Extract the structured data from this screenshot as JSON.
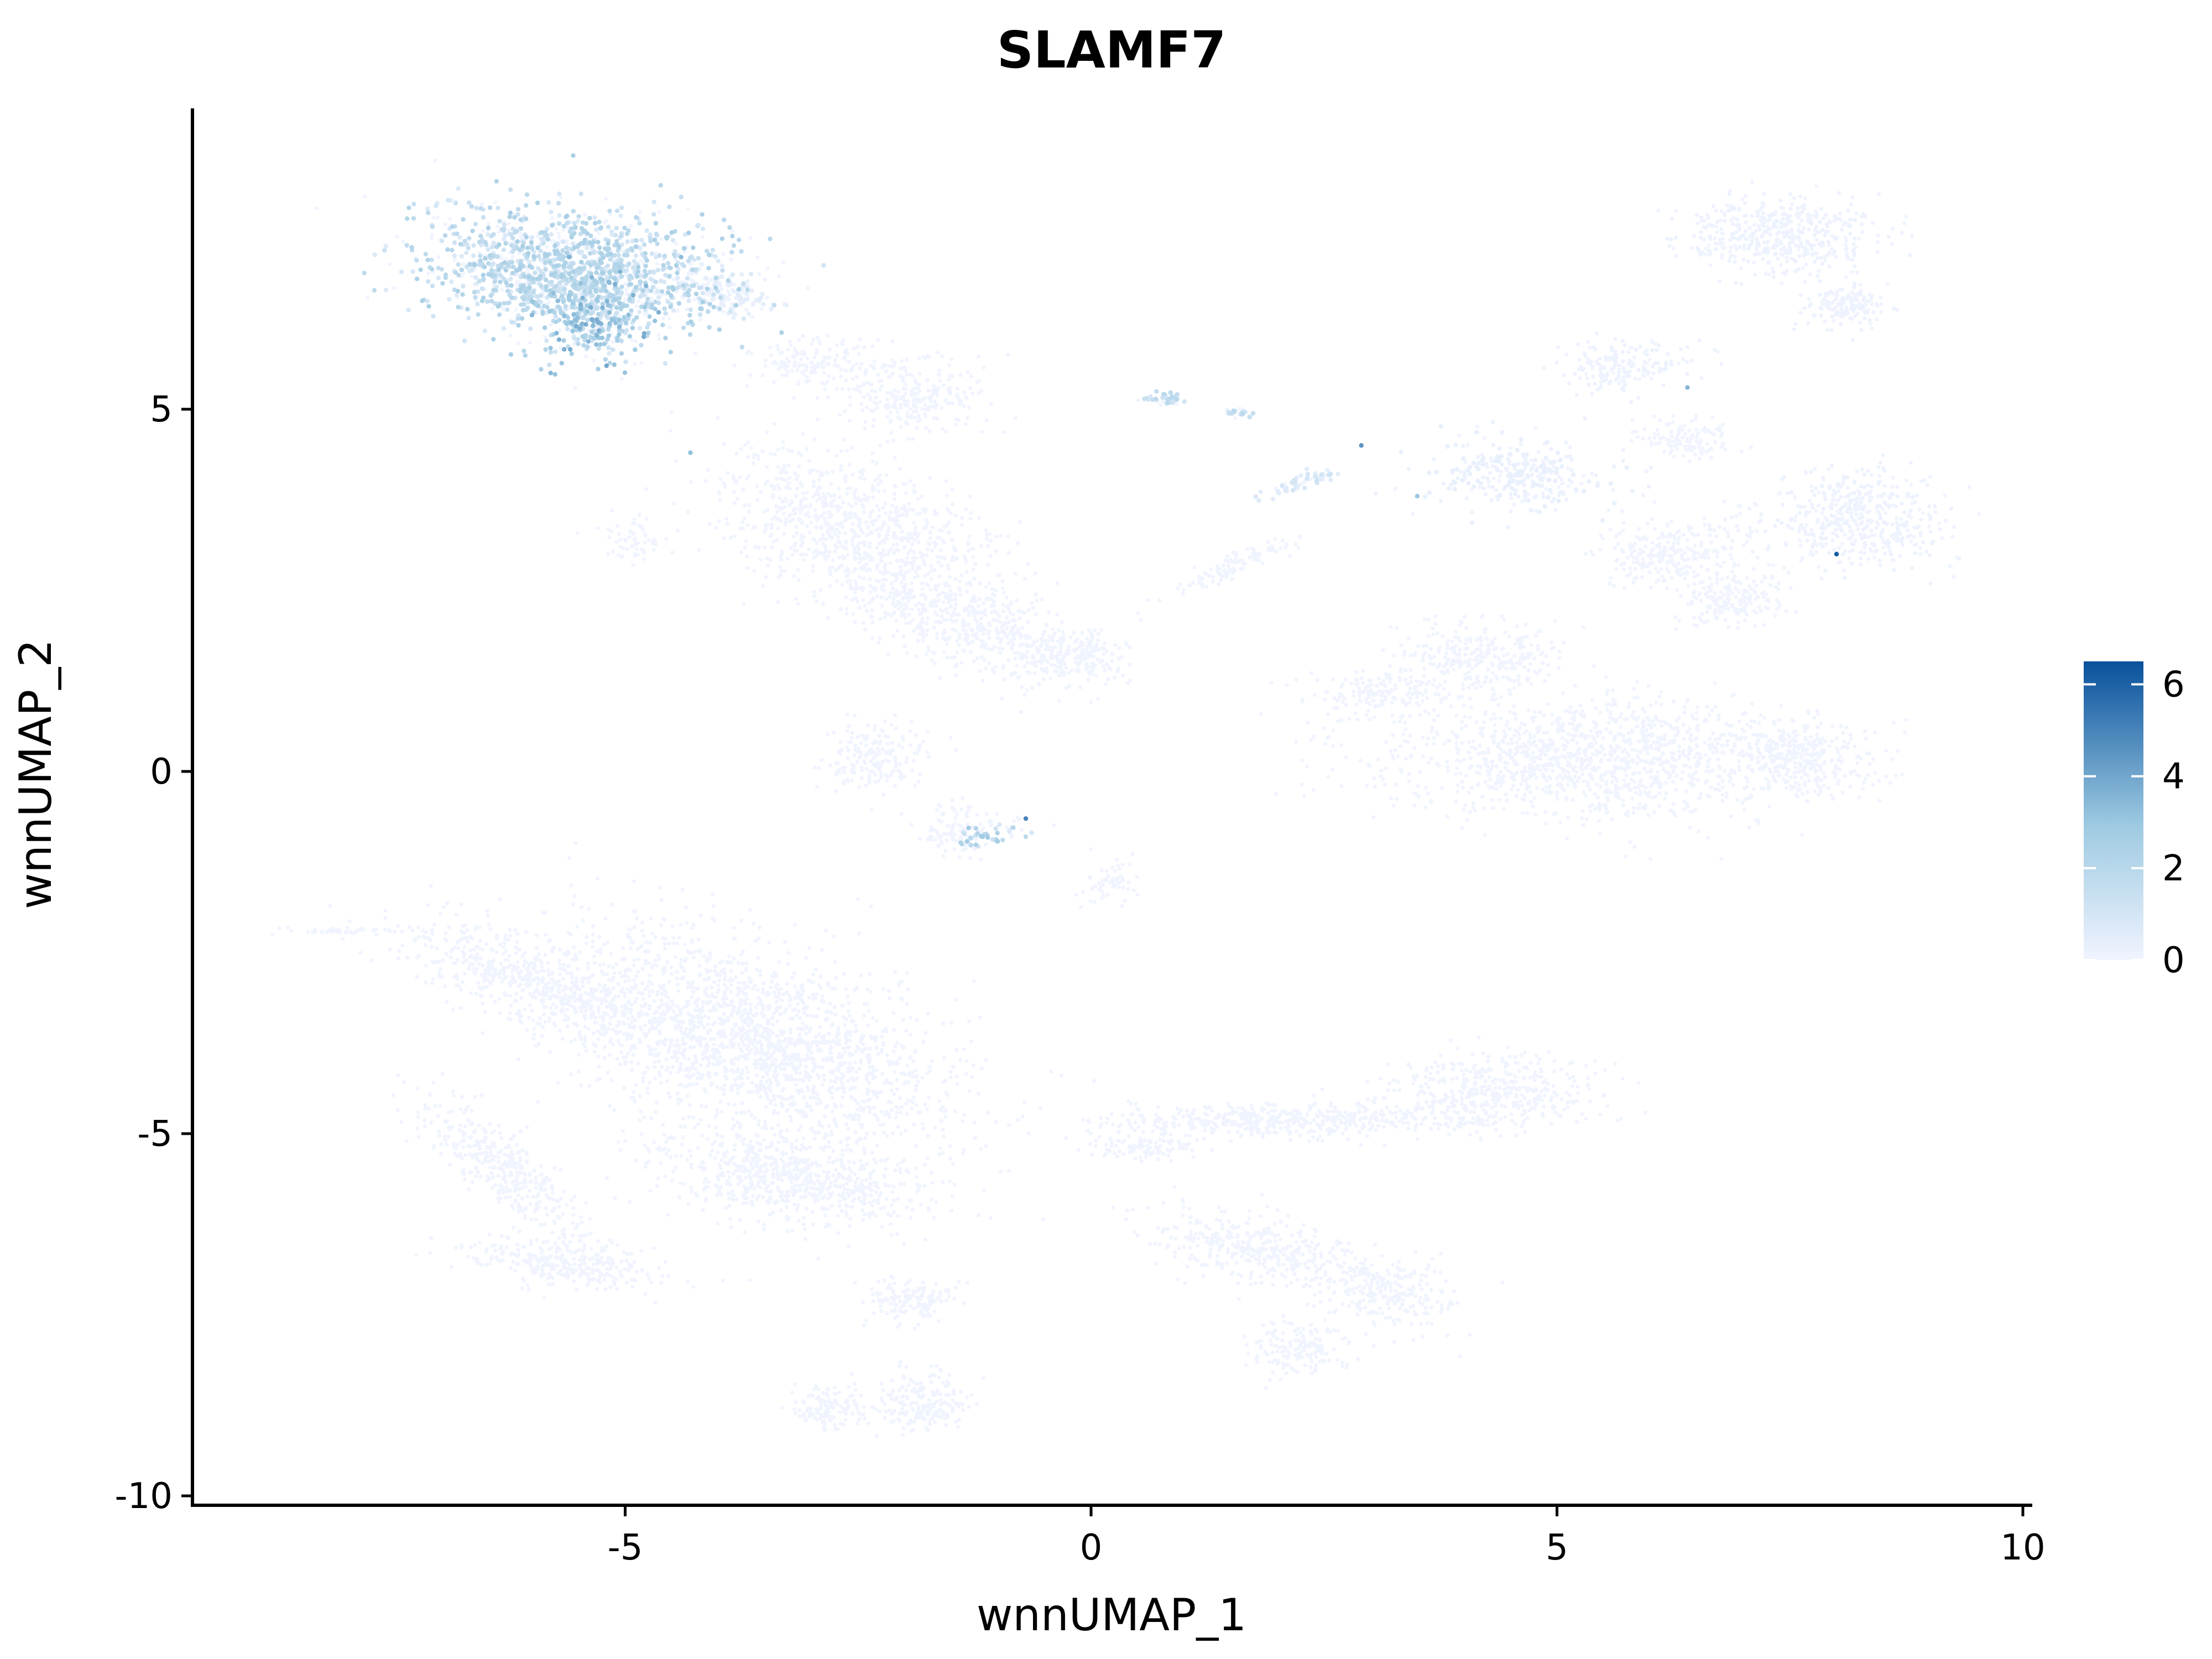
{
  "chart_data": {
    "type": "scatter",
    "title": "SLAMF7",
    "xlabel": "wnnUMAP_1",
    "ylabel": "wnnUMAP_2",
    "xlim": [
      -10,
      10
    ],
    "ylim": [
      -10,
      9
    ],
    "x_ticks": [
      -5,
      0,
      5,
      10
    ],
    "x_tick_labels": [
      "-5",
      "0",
      "5",
      "10"
    ],
    "y_ticks": [
      5,
      0,
      -5,
      -10
    ],
    "y_tick_labels": [
      "5",
      "0",
      "-5",
      "-10"
    ],
    "grid": false,
    "legend_position": "right",
    "color_scale": {
      "min": 0,
      "max": 6.5,
      "low_color": "#f0f4ff",
      "mid_color": "#9ecae1",
      "high_color": "#08519c",
      "tick_values": [
        6,
        4,
        2,
        0
      ],
      "tick_labels": [
        "6",
        "4",
        "2",
        "0"
      ]
    },
    "clusters": [
      {
        "cx": -5.6,
        "cy": 6.9,
        "rx": 1.65,
        "ry": 0.85,
        "rot": -8,
        "n": 1500,
        "expr": 1.6
      },
      {
        "cx": -5.3,
        "cy": 6.2,
        "rx": 0.55,
        "ry": 0.55,
        "rot": 0,
        "n": 260,
        "expr": 2.4
      },
      {
        "cx": -3.9,
        "cy": 6.6,
        "rx": 0.6,
        "ry": 0.3,
        "rot": -20,
        "n": 120,
        "expr": 0.3
      },
      {
        "cx": -3.0,
        "cy": 5.6,
        "rx": 0.6,
        "ry": 0.4,
        "rot": 0,
        "n": 160,
        "expr": 0.0
      },
      {
        "cx": -1.9,
        "cy": 5.2,
        "rx": 0.7,
        "ry": 0.55,
        "rot": 0,
        "n": 260,
        "expr": 0.0
      },
      {
        "cx": -2.5,
        "cy": 3.3,
        "rx": 1.6,
        "ry": 0.9,
        "rot": -30,
        "n": 900,
        "expr": 0.0
      },
      {
        "cx": -1.3,
        "cy": 2.0,
        "rx": 1.4,
        "ry": 0.6,
        "rot": -25,
        "n": 520,
        "expr": 0.0
      },
      {
        "cx": -0.2,
        "cy": 1.6,
        "rx": 0.5,
        "ry": 0.35,
        "rot": 0,
        "n": 180,
        "expr": 0.0
      },
      {
        "cx": -2.3,
        "cy": 0.2,
        "rx": 0.55,
        "ry": 0.45,
        "rot": 0,
        "n": 180,
        "expr": 0.0
      },
      {
        "cx": -1.4,
        "cy": -0.8,
        "rx": 0.45,
        "ry": 0.35,
        "rot": 0,
        "n": 120,
        "expr": 0.0
      },
      {
        "cx": -1.1,
        "cy": -0.9,
        "rx": 0.45,
        "ry": 0.12,
        "rot": 10,
        "n": 45,
        "expr": 1.8
      },
      {
        "cx": -4.9,
        "cy": 3.2,
        "rx": 0.5,
        "ry": 0.3,
        "rot": -30,
        "n": 60,
        "expr": 0.0
      },
      {
        "cx": 0.8,
        "cy": 5.15,
        "rx": 0.2,
        "ry": 0.1,
        "rot": 0,
        "n": 40,
        "expr": 1.3
      },
      {
        "cx": 1.6,
        "cy": 4.95,
        "rx": 0.18,
        "ry": 0.06,
        "rot": 0,
        "n": 25,
        "expr": 1.3
      },
      {
        "cx": 2.3,
        "cy": 4.0,
        "rx": 0.5,
        "ry": 0.1,
        "rot": 25,
        "n": 60,
        "expr": 0.8
      },
      {
        "cx": 1.5,
        "cy": 2.8,
        "rx": 0.8,
        "ry": 0.15,
        "rot": 30,
        "n": 110,
        "expr": 0.0
      },
      {
        "cx": 7.4,
        "cy": 7.4,
        "rx": 1.0,
        "ry": 0.55,
        "rot": 0,
        "n": 480,
        "expr": 0.1
      },
      {
        "cx": 8.1,
        "cy": 6.4,
        "rx": 0.5,
        "ry": 0.3,
        "rot": 0,
        "n": 140,
        "expr": 0.1
      },
      {
        "cx": 5.7,
        "cy": 5.6,
        "rx": 0.7,
        "ry": 0.35,
        "rot": 10,
        "n": 180,
        "expr": 0.1
      },
      {
        "cx": 4.6,
        "cy": 4.1,
        "rx": 0.9,
        "ry": 0.5,
        "rot": 0,
        "n": 300,
        "expr": 0.2
      },
      {
        "cx": 6.4,
        "cy": 4.6,
        "rx": 0.5,
        "ry": 0.3,
        "rot": 0,
        "n": 120,
        "expr": 0.0
      },
      {
        "cx": 8.2,
        "cy": 3.5,
        "rx": 1.0,
        "ry": 0.7,
        "rot": 0,
        "n": 480,
        "expr": 0.1
      },
      {
        "cx": 6.2,
        "cy": 3.0,
        "rx": 0.8,
        "ry": 0.5,
        "rot": 0,
        "n": 260,
        "expr": 0.0
      },
      {
        "cx": 6.9,
        "cy": 2.4,
        "rx": 0.6,
        "ry": 0.4,
        "rot": 0,
        "n": 180,
        "expr": 0.0
      },
      {
        "cx": 4.2,
        "cy": 1.6,
        "rx": 0.9,
        "ry": 0.5,
        "rot": 0,
        "n": 280,
        "expr": 0.0
      },
      {
        "cx": 5.4,
        "cy": 0.2,
        "rx": 2.4,
        "ry": 0.85,
        "rot": 0,
        "n": 1300,
        "expr": 0.0
      },
      {
        "cx": 7.6,
        "cy": 0.2,
        "rx": 0.7,
        "ry": 0.55,
        "rot": 0,
        "n": 300,
        "expr": 0.0
      },
      {
        "cx": 3.2,
        "cy": 1.1,
        "rx": 0.8,
        "ry": 0.3,
        "rot": 0,
        "n": 160,
        "expr": 0.0
      },
      {
        "cx": 0.2,
        "cy": -1.5,
        "rx": 0.3,
        "ry": 0.3,
        "rot": 0,
        "n": 60,
        "expr": 0.0
      },
      {
        "cx": -6.0,
        "cy": -2.9,
        "rx": 1.5,
        "ry": 0.55,
        "rot": -25,
        "n": 600,
        "expr": 0.0
      },
      {
        "cx": -3.6,
        "cy": -3.7,
        "rx": 2.3,
        "ry": 1.2,
        "rot": -28,
        "n": 2000,
        "expr": 0.0
      },
      {
        "cx": -3.3,
        "cy": -5.6,
        "rx": 1.5,
        "ry": 0.6,
        "rot": -10,
        "n": 700,
        "expr": 0.0
      },
      {
        "cx": -6.3,
        "cy": -5.5,
        "rx": 1.3,
        "ry": 0.4,
        "rot": -50,
        "n": 400,
        "expr": 0.0
      },
      {
        "cx": -5.6,
        "cy": -6.8,
        "rx": 1.1,
        "ry": 0.3,
        "rot": -10,
        "n": 300,
        "expr": 0.0
      },
      {
        "cx": -1.9,
        "cy": -7.3,
        "rx": 0.5,
        "ry": 0.3,
        "rot": 0,
        "n": 140,
        "expr": 0.0
      },
      {
        "cx": -1.8,
        "cy": -8.7,
        "rx": 0.5,
        "ry": 0.4,
        "rot": 0,
        "n": 200,
        "expr": 0.0
      },
      {
        "cx": -2.8,
        "cy": -8.8,
        "rx": 0.4,
        "ry": 0.3,
        "rot": 0,
        "n": 130,
        "expr": 0.0
      },
      {
        "cx": -8.0,
        "cy": -2.2,
        "rx": 0.6,
        "ry": 0.05,
        "rot": 0,
        "n": 45,
        "expr": 0.0
      },
      {
        "cx": 2.2,
        "cy": -4.8,
        "rx": 2.1,
        "ry": 0.25,
        "rot": 0,
        "n": 520,
        "expr": 0.0
      },
      {
        "cx": 4.3,
        "cy": -4.4,
        "rx": 1.1,
        "ry": 0.55,
        "rot": 0,
        "n": 400,
        "expr": 0.0
      },
      {
        "cx": 1.8,
        "cy": -6.6,
        "rx": 1.3,
        "ry": 0.45,
        "rot": -15,
        "n": 400,
        "expr": 0.0
      },
      {
        "cx": 3.2,
        "cy": -7.2,
        "rx": 0.7,
        "ry": 0.5,
        "rot": 0,
        "n": 240,
        "expr": 0.0
      },
      {
        "cx": 2.2,
        "cy": -8.0,
        "rx": 0.5,
        "ry": 0.35,
        "rot": 0,
        "n": 160,
        "expr": 0.0
      },
      {
        "cx": 0.6,
        "cy": -5.2,
        "rx": 0.6,
        "ry": 0.2,
        "rot": 0,
        "n": 100,
        "expr": 0.0
      }
    ],
    "highlight_points": [
      {
        "x": 8.0,
        "y": 3.0,
        "value": 6.2
      },
      {
        "x": -0.7,
        "y": -0.65,
        "value": 5.0
      },
      {
        "x": 2.9,
        "y": 4.5,
        "value": 4.5
      },
      {
        "x": 6.4,
        "y": 5.3,
        "value": 3.5
      },
      {
        "x": 3.5,
        "y": 3.8,
        "value": 3.0
      },
      {
        "x": -5.2,
        "y": 5.6,
        "value": 4.0
      },
      {
        "x": -4.8,
        "y": 6.0,
        "value": 3.8
      },
      {
        "x": -6.0,
        "y": 6.3,
        "value": 3.5
      },
      {
        "x": -5.6,
        "y": 7.1,
        "value": 3.6
      },
      {
        "x": -4.4,
        "y": 7.1,
        "value": 3.3
      },
      {
        "x": -5.8,
        "y": 5.5,
        "value": 3.4
      },
      {
        "x": -4.3,
        "y": 4.4,
        "value": 3.2
      }
    ]
  }
}
